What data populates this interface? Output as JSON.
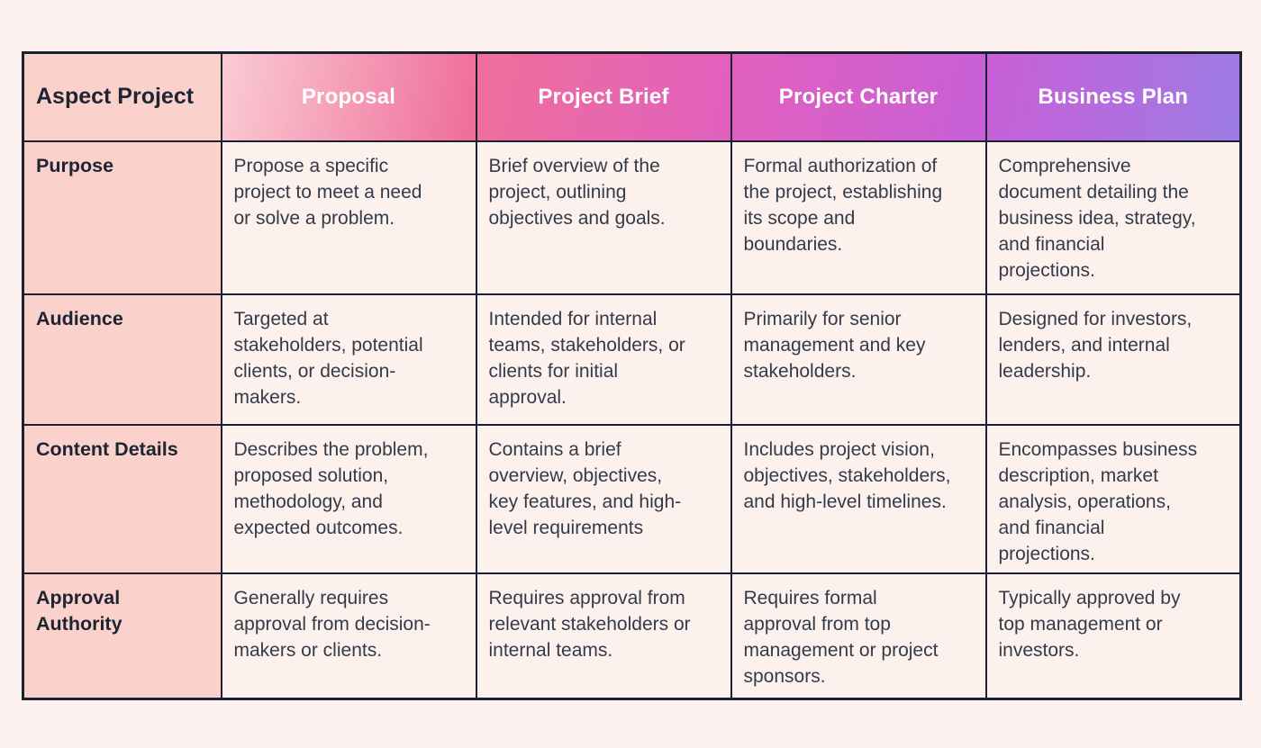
{
  "page": {
    "background_color": "#fdf1ef"
  },
  "table": {
    "corner_header": "Aspect Project",
    "columns": [
      {
        "label": "Proposal"
      },
      {
        "label": "Project Brief"
      },
      {
        "label": "Project Charter"
      },
      {
        "label": "Business Plan"
      }
    ],
    "rows": [
      {
        "label": "Purpose",
        "cells": [
          "Propose a specific project to meet a need or solve a problem.",
          "Brief overview of the project, outlining objectives and goals.",
          "Formal authorization of the project, establishing its scope and boundaries.",
          "Comprehensive document detailing the business idea, strategy, and financial projections."
        ]
      },
      {
        "label": "Audience",
        "cells": [
          "Targeted at stakeholders, potential clients, or decision-makers.",
          "Intended for internal teams, stakeholders, or clients for initial approval.",
          "Primarily for senior management and key stakeholders.",
          "Designed for investors, lenders, and internal leadership."
        ]
      },
      {
        "label": "Content Details",
        "cells": [
          "Describes the problem, proposed solution, methodology, and expected outcomes.",
          "Contains a brief overview, objectives, key features, and high-level requirements",
          "Includes project vision, objectives, stakeholders, and high-level timelines.",
          "Encompasses business description, market analysis, operations, and financial projections."
        ]
      },
      {
        "label": "Approval Authority",
        "cells": [
          "Generally requires approval from decision-makers or clients.",
          "Requires approval from relevant stakeholders or internal teams.",
          "Requires formal approval from top management or project sponsors.",
          "Typically approved by top management or investors."
        ]
      }
    ],
    "colors": {
      "header_gradient_start": "#fbd2cb",
      "header_gradient_pink": "#ef6f9b",
      "header_gradient_magenta": "#e160be",
      "header_gradient_violet": "#c760d8",
      "header_gradient_end": "#9c7ce4",
      "label_column_bg": "#fbd2cb",
      "body_cell_bg": "#fdf1ee",
      "border": "#1b2130",
      "header_text": "#ffffff",
      "label_text": "#1d2433",
      "body_text": "#333b49"
    }
  }
}
